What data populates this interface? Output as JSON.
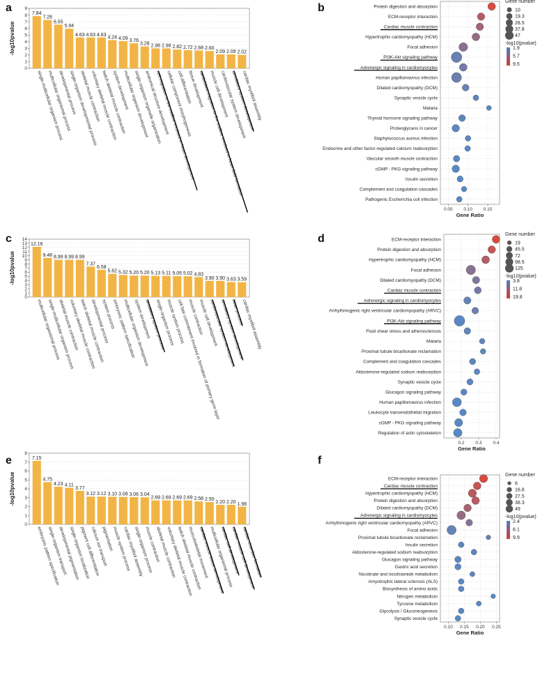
{
  "chart_data": [
    {
      "panel": "a",
      "type": "bar",
      "ylabel": "-log10pvalue",
      "ylim": [
        0,
        9
      ],
      "yticks": [
        0,
        1,
        2,
        3,
        4,
        5,
        6,
        7,
        8,
        9
      ],
      "categories": [
        "single-multicellular organism process",
        "multicellular organismal process",
        "developmental process",
        "single-organism developmental process",
        "skeletal muscle contraction",
        "voluntary skeletal muscle contraction",
        "twitch skeletal muscle contraction",
        "system development",
        "multicellular organism development",
        "single-organism organelle organization",
        "anatomical structure development",
        "cell migration to the midline involved in heart development",
        "cellular component morphogenesis",
        "cell differentiation",
        "tissue development",
        "cardioblast migration to the midline involved in heart field formation",
        "muscle cell development",
        "cardiovascular system development",
        "circulatory system development",
        "cardiac myofibril assembly"
      ],
      "values": [
        7.84,
        7.26,
        6.55,
        5.94,
        4.63,
        4.63,
        4.63,
        4.24,
        4.09,
        3.76,
        3.28,
        2.98,
        2.98,
        2.82,
        2.72,
        2.68,
        2.6,
        2.09,
        2.09,
        2.02
      ],
      "value_labels": [
        "7.84",
        "7.26",
        "6.55",
        "5.94",
        "4.63",
        "4.63",
        "4.63",
        "4.24",
        "4.09",
        "3.76",
        "3.28",
        "2.98",
        "2.98",
        "2.82",
        "2.72",
        "2.68",
        "2.60",
        "2.09",
        "2.09",
        "2.02"
      ],
      "underlined": [
        11,
        15,
        18
      ]
    },
    {
      "panel": "b",
      "type": "scatter",
      "xlabel": "Gene Ratio",
      "xlim": [
        0.03,
        0.18
      ],
      "xticks": [
        0.05,
        0.1,
        0.15
      ],
      "xtick_labels": [
        "0.05",
        "0.10",
        "0.15"
      ],
      "pathways": [
        "Protein digestion and absorption",
        "ECM-receptor interaction",
        "Cardiac muscle contraction",
        "Hypertrophic cardiomyopathy (HCM)",
        "Focal adhesion",
        "PI3K-Akt signaling pathway",
        "Adrenergic signaling in cardiomyocytes",
        "Human papillomavirus infection",
        "Dilated cardiomyopathy (DCM)",
        "Synaptic vesicle cycle",
        "Malaria",
        "Thyroid hormone signaling pathway",
        "Proteoglycans in cancer",
        "Staphylococcus aureus infection",
        "Endocrine and other factor-regulated calcium reabsorption",
        "Vascular smooth muscle contraction",
        "cGMP - PKG signaling pathway",
        "Insulin secretion",
        "Complement and coagulation cascades",
        "Pathogenic Escherichia coli infection"
      ],
      "gene_ratio": [
        0.16,
        0.133,
        0.13,
        0.12,
        0.088,
        0.071,
        0.088,
        0.071,
        0.094,
        0.12,
        0.153,
        0.085,
        0.069,
        0.1,
        0.099,
        0.071,
        0.069,
        0.08,
        0.09,
        0.078
      ],
      "gene_number": [
        20,
        18,
        18,
        20,
        28,
        47,
        20,
        40,
        14,
        8,
        5,
        14,
        18,
        8,
        8,
        12,
        18,
        10,
        7,
        8
      ],
      "neg_log10_p": [
        9.5,
        7.6,
        6.3,
        5.5,
        4.8,
        3.0,
        3.7,
        3.1,
        2.9,
        2.2,
        1.9,
        2.3,
        2.3,
        2.0,
        2.0,
        2.0,
        2.0,
        1.9,
        1.9,
        1.9
      ],
      "underlined": [
        2,
        5,
        6
      ],
      "size_legend_title": "Gene number",
      "size_legend": [
        10,
        19.3,
        28.5,
        37.8,
        47
      ],
      "size_legend_labels": [
        "10",
        "19.3",
        "28.5",
        "37.8",
        "47"
      ],
      "color_legend_title": "-log10(pvalue)",
      "color_range": [
        1.9,
        9.5
      ],
      "color_legend_labels": [
        "1.9",
        "5.7",
        "9.5"
      ]
    },
    {
      "panel": "c",
      "type": "bar",
      "ylabel": "-log10pvalue",
      "ylim": [
        0,
        14
      ],
      "yticks": [
        0,
        1,
        2,
        3,
        4,
        5,
        6,
        7,
        8,
        9,
        10,
        11,
        12,
        13,
        14
      ],
      "categories": [
        "multicellular organismal process",
        "single-multicellular organism process",
        "skeletal muscle contraction",
        "voluntary skeletal muscle contraction",
        "twitch skeletal muscle contraction",
        "developmental process",
        "system process",
        "embryonic pattern specification",
        "multicellular organism development",
        "system development",
        "circulatory system process",
        "single-organism process",
        "muscle system process",
        "cell fate commitment involved in formation of primary germ layer",
        "muscle contraction",
        "muscle cell development",
        "cardiovascular system development",
        "circulatory system development",
        "heart process",
        "cardiac myofibril assembly"
      ],
      "values": [
        12.16,
        9.48,
        8.99,
        8.99,
        8.99,
        7.37,
        6.58,
        5.62,
        5.32,
        5.2,
        5.2,
        5.13,
        5.11,
        5.05,
        5.02,
        4.83,
        3.9,
        3.9,
        3.63,
        3.59
      ],
      "value_labels": [
        "12.16",
        "9.48",
        "8.99",
        "8.99",
        "8.99",
        "7.37",
        "6.58",
        "5.62",
        "5.32",
        "5.20",
        "5.20",
        "5.13",
        "5.11",
        "5.05",
        "5.02",
        "4.83",
        "3.90",
        "3.90",
        "3.63",
        "3.59"
      ],
      "underlined": [
        10,
        16,
        17,
        18
      ]
    },
    {
      "panel": "d",
      "type": "scatter",
      "xlabel": "Gene Ratio",
      "xlim": [
        0.1,
        0.42
      ],
      "xticks": [
        0.2,
        0.3,
        0.4
      ],
      "xtick_labels": [
        "0.2",
        "0.3",
        "0.4"
      ],
      "pathways": [
        "ECM-receptor interaction",
        "Protein digestion and absorption",
        "Hypertrophic cardiomyopathy (HCM)",
        "Focal adhesion",
        "Dilated cardiomyopathy (DCM)",
        "Cardiac muscle contraction",
        "Adrenergic signaling in cardiomyocytes",
        "Arrhythmogenic right ventricular cardiomyopathy (ARVC)",
        "PI3K-Akt signaling pathway",
        "Fluid shear stress and atherosclerosis",
        "Malaria",
        "Proximal tubule bicarbonate reclamation",
        "Complement and coagulation cascades",
        "Aldosterone-regulated sodium reabsorption",
        "Synaptic vesicle cycle",
        "Glucagon signaling pathway",
        "Human papillomavirus infection",
        "Leukocyte transendothelial migration",
        "cGMP - PKG signaling pathway",
        "Regulation of actin cytoskeleton"
      ],
      "gene_ratio": [
        0.4,
        0.375,
        0.34,
        0.255,
        0.285,
        0.295,
        0.235,
        0.28,
        0.19,
        0.235,
        0.32,
        0.325,
        0.265,
        0.29,
        0.25,
        0.215,
        0.175,
        0.21,
        0.185,
        0.18
      ],
      "gene_number": [
        55,
        50,
        55,
        90,
        45,
        40,
        45,
        35,
        125,
        35,
        19,
        19,
        28,
        22,
        28,
        28,
        80,
        35,
        60,
        70
      ],
      "neg_log10_p": [
        19.8,
        17.5,
        15.0,
        10.0,
        8.8,
        7.5,
        5.5,
        6.0,
        4.0,
        4.5,
        5.0,
        4.5,
        4.5,
        4.2,
        4.0,
        4.0,
        3.8,
        3.8,
        3.8,
        3.8
      ],
      "underlined": [
        5,
        6,
        8
      ],
      "size_legend_title": "Gene number",
      "size_legend": [
        19,
        45.5,
        72,
        98.5,
        125
      ],
      "size_legend_labels": [
        "19",
        "45.5",
        "72",
        "98.5",
        "125"
      ],
      "color_legend_title": "-log10(pvalue)",
      "color_range": [
        3.8,
        19.8
      ],
      "color_legend_labels": [
        "3.8",
        "11.8",
        "19.8"
      ]
    },
    {
      "panel": "e",
      "type": "bar",
      "ylabel": "-log10pvalue",
      "ylim": [
        0,
        8
      ],
      "yticks": [
        0,
        1,
        2,
        3,
        4,
        5,
        6,
        7,
        8
      ],
      "categories": [
        "embryonic pattern specification",
        "single-organism transport",
        "developmental pigmentation",
        "single-organism localization",
        "pigment cell differentiation",
        "calcium ion transport",
        "pigmentation",
        "muscle system process",
        "cardiac myofibril assembly",
        "single-organism process",
        "muscle contraction",
        "skeletal muscle contraction",
        "voluntary skeletal muscle contraction",
        "twitch skeletal muscle contraction",
        "musculoskeletal movement",
        "cardiac muscle tissue development",
        "multicellular organismal process",
        "cardiac cell development",
        "cardiac muscle cell development",
        "cardiac chamber formation"
      ],
      "values": [
        7.15,
        4.75,
        4.23,
        4.11,
        3.77,
        3.12,
        3.12,
        3.1,
        3.08,
        3.06,
        3.04,
        2.69,
        2.69,
        2.69,
        2.69,
        2.58,
        2.5,
        2.2,
        2.2,
        1.98
      ],
      "value_labels": [
        "7.15",
        "4.75",
        "4.23",
        "4.11",
        "3.77",
        "3.12",
        "3.12",
        "3.10",
        "3.08",
        "3.06",
        "3.04",
        "2.69",
        "2.69",
        "2.69",
        "2.69",
        "2.58",
        "2.50",
        "2.20",
        "2.20",
        "1.98"
      ],
      "underlined": [
        15,
        17,
        18,
        19
      ]
    },
    {
      "panel": "f",
      "type": "scatter",
      "xlabel": "Gene Ratio",
      "xlim": [
        0.075,
        0.26
      ],
      "xticks": [
        0.1,
        0.15,
        0.2,
        0.25
      ],
      "xtick_labels": [
        "0.10",
        "0.15",
        "0.20",
        "0.25"
      ],
      "pathways": [
        "ECM-receptor interaction",
        "Cardiac muscle contraction",
        "Hypertrophic cardiomyopathy (HCM)",
        "Protein digestion and absorption",
        "Dilated cardiomyopathy (DCM)",
        "Adrenergic signaling in cardiomyocytes",
        "Arrhythmogenic right ventricular cardiomyopathy (ARVC)",
        "Focal adhesion",
        "Proximal tubule bicarbonate reclamation",
        "Insulin secretion",
        "Aldosterone-regulated sodium reabsorption",
        "Glucagon signaling pathway",
        "Gastric acid secretion",
        "Nicotinate and nicotinamide metabolism",
        "Amyotrophic lateral sclerosis (ALS)",
        "Biosynthesis of amino acids",
        "Nitrogen metabolism",
        "Tyrosine metabolism",
        "Glycolysis / Gluconeogenesis",
        "Synaptic vesicle cycle"
      ],
      "gene_ratio": [
        0.21,
        0.19,
        0.175,
        0.185,
        0.16,
        0.14,
        0.165,
        0.11,
        0.225,
        0.14,
        0.18,
        0.13,
        0.13,
        0.175,
        0.14,
        0.14,
        0.24,
        0.195,
        0.14,
        0.13
      ],
      "gene_number": [
        35,
        30,
        35,
        30,
        28,
        40,
        20,
        49,
        6,
        12,
        12,
        18,
        16,
        8,
        12,
        12,
        6,
        8,
        12,
        12
      ],
      "neg_log10_p": [
        9.9,
        8.8,
        8.2,
        8.0,
        7.0,
        6.0,
        5.0,
        3.2,
        3.5,
        2.9,
        2.7,
        2.6,
        2.5,
        2.6,
        2.5,
        2.5,
        2.4,
        2.4,
        2.4,
        2.4
      ],
      "underlined": [
        1,
        5
      ],
      "size_legend_title": "Gene number",
      "size_legend": [
        6,
        16.8,
        27.5,
        38.3,
        49
      ],
      "size_legend_labels": [
        "6",
        "16.8",
        "27.5",
        "38.3",
        "49"
      ],
      "color_legend_title": "-log10(pvalue)",
      "color_range": [
        2.4,
        9.9
      ],
      "color_legend_labels": [
        "2.4",
        "6.1",
        "9.9"
      ]
    }
  ],
  "colors": {
    "bar": "#f2b444",
    "low": "#4a7fc1",
    "high": "#d63c2f",
    "grid": "#d8d8d8"
  }
}
